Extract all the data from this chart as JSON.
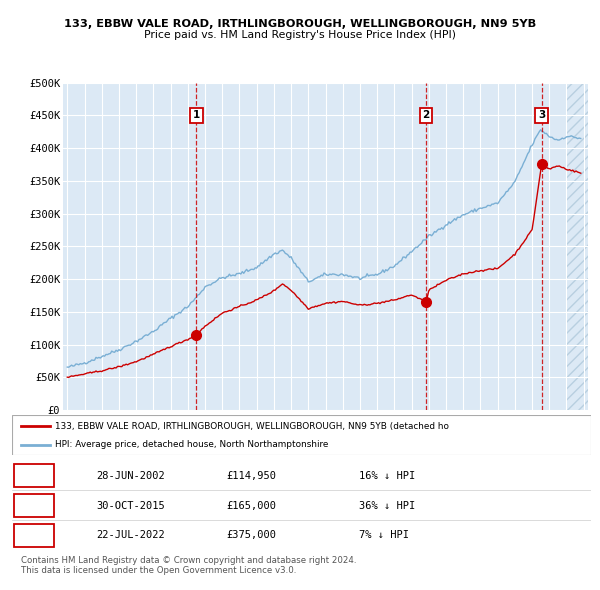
{
  "title1": "133, EBBW VALE ROAD, IRTHLINGBOROUGH, WELLINGBOROUGH, NN9 5YB",
  "title2": "Price paid vs. HM Land Registry's House Price Index (HPI)",
  "ylim": [
    0,
    500000
  ],
  "yticks": [
    0,
    50000,
    100000,
    150000,
    200000,
    250000,
    300000,
    350000,
    400000,
    450000,
    500000
  ],
  "ytick_labels": [
    "£0",
    "£50K",
    "£100K",
    "£150K",
    "£200K",
    "£250K",
    "£300K",
    "£350K",
    "£400K",
    "£450K",
    "£500K"
  ],
  "background_color": "#dce9f5",
  "grid_color": "#ffffff",
  "hatch_color": "#b8cfe0",
  "sale_year_nums": [
    2002.495,
    2015.831,
    2022.556
  ],
  "sale_prices": [
    114950,
    165000,
    375000
  ],
  "sale_labels": [
    "1",
    "2",
    "3"
  ],
  "legend_label_red": "133, EBBW VALE ROAD, IRTHLINGBOROUGH, WELLINGBOROUGH, NN9 5YB (detached ho",
  "legend_label_blue": "HPI: Average price, detached house, North Northamptonshire",
  "table_rows": [
    [
      "1",
      "28-JUN-2002",
      "£114,950",
      "16% ↓ HPI"
    ],
    [
      "2",
      "30-OCT-2015",
      "£165,000",
      "36% ↓ HPI"
    ],
    [
      "3",
      "22-JUL-2022",
      "£375,000",
      "7% ↓ HPI"
    ]
  ],
  "footnote": "Contains HM Land Registry data © Crown copyright and database right 2024.\nThis data is licensed under the Open Government Licence v3.0.",
  "red_color": "#cc0000",
  "blue_color": "#7aafd4",
  "hpi_key_points": [
    [
      1995.0,
      65000
    ],
    [
      1996.0,
      72000
    ],
    [
      1997.0,
      82000
    ],
    [
      1998.0,
      92000
    ],
    [
      1999.0,
      105000
    ],
    [
      2000.0,
      120000
    ],
    [
      2001.0,
      140000
    ],
    [
      2002.0,
      158000
    ],
    [
      2002.5,
      172000
    ],
    [
      2003.0,
      188000
    ],
    [
      2004.0,
      202000
    ],
    [
      2005.0,
      208000
    ],
    [
      2006.0,
      218000
    ],
    [
      2007.0,
      238000
    ],
    [
      2007.5,
      244000
    ],
    [
      2008.0,
      232000
    ],
    [
      2009.0,
      196000
    ],
    [
      2010.0,
      207000
    ],
    [
      2011.0,
      207000
    ],
    [
      2012.0,
      201000
    ],
    [
      2013.0,
      207000
    ],
    [
      2014.0,
      220000
    ],
    [
      2015.0,
      242000
    ],
    [
      2016.0,
      265000
    ],
    [
      2017.0,
      283000
    ],
    [
      2018.0,
      298000
    ],
    [
      2019.0,
      308000
    ],
    [
      2020.0,
      316000
    ],
    [
      2021.0,
      348000
    ],
    [
      2022.0,
      405000
    ],
    [
      2022.5,
      428000
    ],
    [
      2023.0,
      418000
    ],
    [
      2023.5,
      412000
    ],
    [
      2024.0,
      418000
    ],
    [
      2024.83,
      415000
    ]
  ],
  "red_key_points": [
    [
      1995.0,
      50000
    ],
    [
      1996.0,
      55000
    ],
    [
      1997.0,
      60000
    ],
    [
      1998.0,
      66000
    ],
    [
      1999.0,
      74000
    ],
    [
      2000.0,
      85000
    ],
    [
      2001.0,
      97000
    ],
    [
      2002.0,
      108000
    ],
    [
      2002.495,
      114950
    ],
    [
      2003.0,
      128000
    ],
    [
      2004.0,
      148000
    ],
    [
      2005.0,
      158000
    ],
    [
      2006.0,
      168000
    ],
    [
      2007.0,
      182000
    ],
    [
      2007.5,
      193000
    ],
    [
      2008.0,
      183000
    ],
    [
      2009.0,
      155000
    ],
    [
      2010.0,
      163000
    ],
    [
      2011.0,
      166000
    ],
    [
      2012.0,
      160000
    ],
    [
      2013.0,
      163000
    ],
    [
      2014.0,
      168000
    ],
    [
      2015.0,
      176000
    ],
    [
      2015.831,
      165000
    ],
    [
      2016.0,
      183000
    ],
    [
      2017.0,
      198000
    ],
    [
      2018.0,
      208000
    ],
    [
      2019.0,
      213000
    ],
    [
      2020.0,
      216000
    ],
    [
      2021.0,
      238000
    ],
    [
      2022.0,
      275000
    ],
    [
      2022.556,
      375000
    ],
    [
      2023.0,
      368000
    ],
    [
      2023.5,
      373000
    ],
    [
      2024.0,
      368000
    ],
    [
      2024.83,
      362000
    ]
  ]
}
